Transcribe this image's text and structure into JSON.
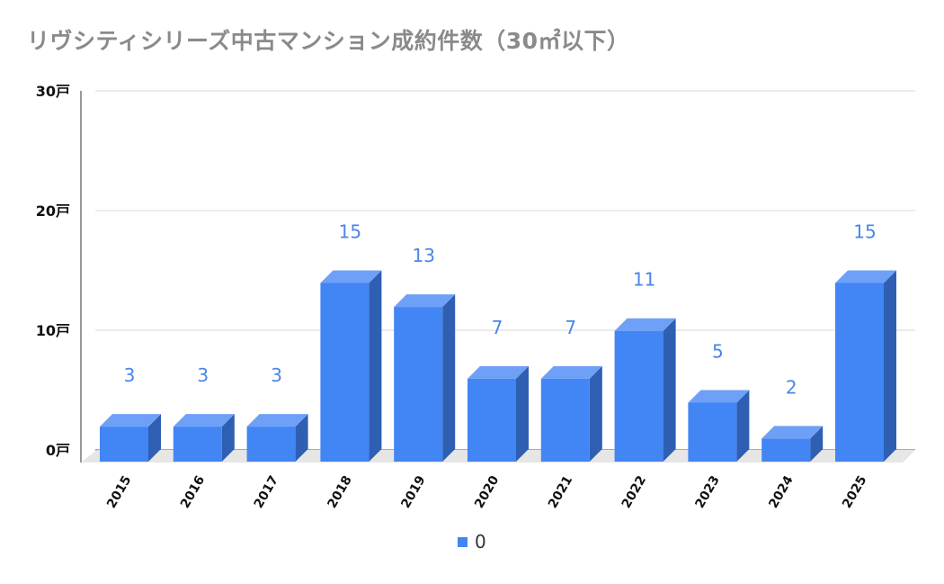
{
  "chart_data": {
    "type": "bar",
    "title": "リヴシティシリーズ中古マンション成約件数（30㎡以下）",
    "categories": [
      "2015",
      "2016",
      "2017",
      "2018",
      "2019",
      "2020",
      "2021",
      "2022",
      "2023",
      "2024",
      "2025"
    ],
    "series": [
      {
        "name": "0",
        "values": [
          3,
          3,
          3,
          15,
          13,
          7,
          7,
          11,
          5,
          2,
          15
        ],
        "data_labels": [
          "3",
          "3",
          "3",
          "15",
          "13",
          "7",
          "7",
          "11",
          "5",
          "2",
          "15"
        ]
      }
    ],
    "yticks": [
      0,
      10,
      20,
      30
    ],
    "ytick_labels": [
      "0戸",
      "10戸",
      "20戸",
      "30戸"
    ],
    "ylim": [
      0,
      30
    ],
    "grid": true,
    "legend_position": "bottom",
    "colors": {
      "bar_front": "#4285f4",
      "bar_top": "#6fa0f7",
      "bar_side": "#2f5fb3",
      "data_label": "#4a86e8",
      "title": "#8a8a8a",
      "grid": "#d9d9d9",
      "floor": "#e6e6e6"
    }
  }
}
